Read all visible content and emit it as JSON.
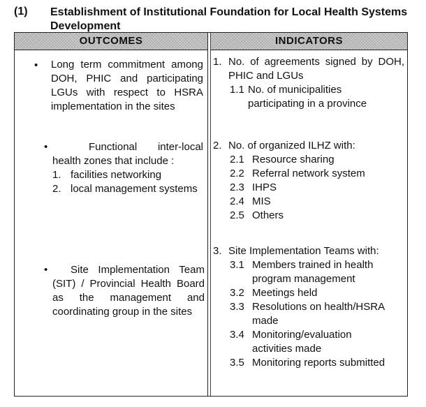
{
  "section": {
    "number": "(1)",
    "title": "Establishment   of Institutional  Foundation  for Local Health Systems Development"
  },
  "table": {
    "headers": {
      "outcomes": "OUTCOMES",
      "indicators": "INDICATORS"
    },
    "outcomes": {
      "o1": {
        "bullet": "•",
        "text": "Long term commitment among DOH, PHIC and participating LGUs with respect to HSRA implementation in the sites"
      },
      "o2": {
        "bullet": "•",
        "text": "Functional inter-local health zones that include :",
        "items": [
          {
            "num": "1.",
            "text": "facilities networking"
          },
          {
            "num": "2.",
            "text": "local management systems"
          }
        ]
      },
      "o3": {
        "bullet": "•",
        "text": "Site Implementation Team (SIT) / Provincial Health Board as the management and coordinating group in the sites"
      }
    },
    "indicators": {
      "i1": {
        "num": "1.",
        "text": "No. of agreements signed by DOH, PHIC and LGUs",
        "subs": [
          {
            "num": "1.1",
            "text": "No. of municipalities participating in a province"
          }
        ]
      },
      "i2": {
        "num": "2.",
        "text": "No. of organized ILHZ with:",
        "subs": [
          {
            "num": "2.1",
            "text": "Resource sharing"
          },
          {
            "num": "2.2",
            "text": "Referral network system"
          },
          {
            "num": "2.3",
            "text": "IHPS"
          },
          {
            "num": "2.4",
            "text": "MIS"
          },
          {
            "num": "2.5",
            "text": "Others"
          }
        ]
      },
      "i3": {
        "num": "3.",
        "text": "Site Implementation Teams with:",
        "subs": [
          {
            "num": "3.1",
            "text": "Members trained in health program management"
          },
          {
            "num": "3.2",
            "text": "Meetings held"
          },
          {
            "num": "3.3",
            "text": "Resolutions on health/HSRA made"
          },
          {
            "num": "3.4",
            "text": "Monitoring/evaluation activities made"
          },
          {
            "num": "3.5",
            "text": "Monitoring reports submitted"
          }
        ]
      }
    }
  }
}
